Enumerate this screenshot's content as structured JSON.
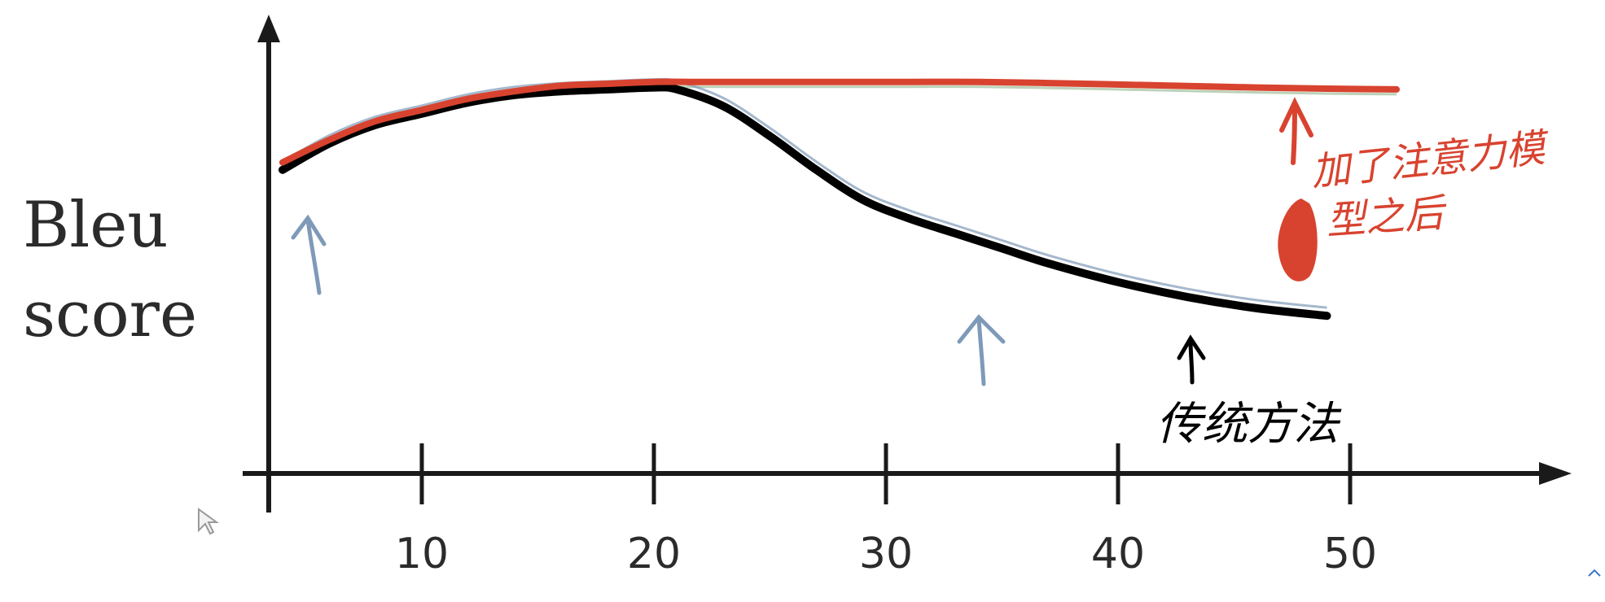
{
  "chart_data": {
    "type": "line",
    "xlabel": "",
    "ylabel": "Bleu score",
    "xlim": [
      3,
      58
    ],
    "ylim": [
      0,
      1
    ],
    "xticks": [
      10,
      20,
      30,
      40,
      50
    ],
    "xtick_labels": [
      "10",
      "20",
      "30",
      "40",
      "50"
    ],
    "yticks": [],
    "grid": false,
    "series": [
      {
        "name": "",
        "color": "#d8432f",
        "x": [
          4,
          6,
          8,
          10,
          12,
          14,
          16,
          18,
          20,
          22,
          25,
          28,
          31,
          34,
          37,
          40,
          43,
          46,
          49,
          52
        ],
        "y": [
          0.74,
          0.8,
          0.85,
          0.88,
          0.91,
          0.93,
          0.945,
          0.95,
          0.955,
          0.955,
          0.955,
          0.955,
          0.955,
          0.955,
          0.952,
          0.948,
          0.944,
          0.94,
          0.937,
          0.935
        ]
      },
      {
        "name": "",
        "color": "#000000",
        "x": [
          4,
          6,
          8,
          10,
          12,
          14,
          16,
          18,
          20,
          21,
          23,
          25,
          27,
          29,
          31,
          33,
          35,
          37,
          40,
          43,
          46,
          49
        ],
        "y": [
          0.72,
          0.79,
          0.84,
          0.87,
          0.9,
          0.92,
          0.93,
          0.935,
          0.94,
          0.935,
          0.89,
          0.81,
          0.72,
          0.64,
          0.59,
          0.55,
          0.51,
          0.47,
          0.42,
          0.38,
          0.35,
          0.33
        ]
      }
    ],
    "annotations": {
      "red_note_line1": "加了注意力模",
      "red_note_line2": "型之后",
      "black_note": "传统方法"
    }
  },
  "colors": {
    "axis": "#1a1a1a",
    "red": "#d8432f",
    "black": "#000000",
    "faint_blue": "#7f9ab8"
  },
  "icons": {
    "corner": "chevron-up-icon",
    "cursor": "mouse-cursor-icon"
  }
}
